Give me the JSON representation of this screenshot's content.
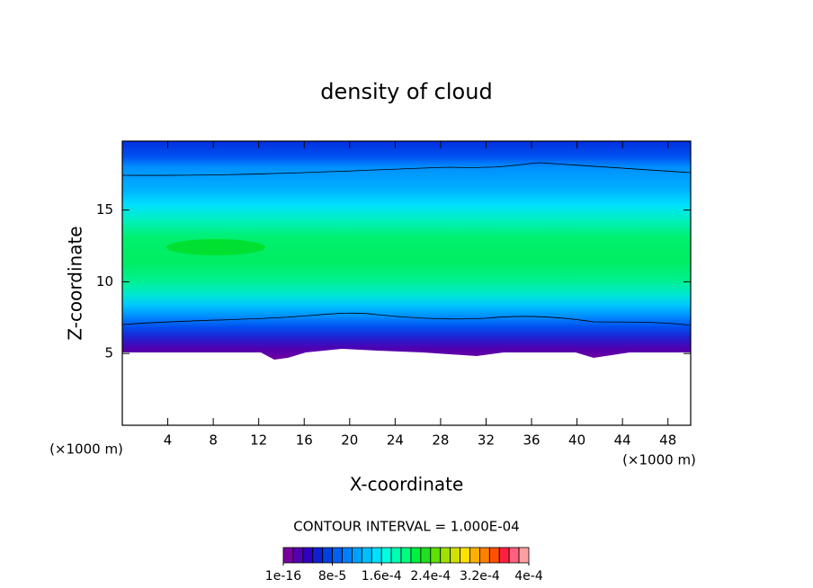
{
  "chart_data": {
    "type": "contour",
    "title": "density of cloud",
    "x_label": "X-coordinate",
    "y_label": "Z-coordinate",
    "axis_unit": "(×1000 m)",
    "xlim": [
      0,
      50
    ],
    "xticks": [
      4,
      8,
      12,
      16,
      20,
      24,
      28,
      32,
      36,
      40,
      44,
      48
    ],
    "ylim": [
      0,
      19.8
    ],
    "yticks": [
      5,
      10,
      15
    ],
    "contour_interval": "CONTOUR INTERVAL = 1.000E-04",
    "colorbar": {
      "lim": [
        0,
        0.0004
      ],
      "colors": [
        "#7a00a0",
        "#5500b0",
        "#3000c0",
        "#1020d0",
        "#0040e0",
        "#0060f0",
        "#0080ff",
        "#00a0ff",
        "#00c0ff",
        "#00e0ff",
        "#00ffe0",
        "#00ffb0",
        "#00ff80",
        "#00f040",
        "#20e020",
        "#60e000",
        "#a0e000",
        "#d0e000",
        "#ffe000",
        "#ffb000",
        "#ff8000",
        "#ff5000",
        "#ff2040",
        "#ff6080",
        "#ffa0a0"
      ],
      "ticks": [
        {
          "value": 1e-16,
          "label": "1e-16"
        },
        {
          "value": 8e-05,
          "label": "8e-5"
        },
        {
          "value": 0.00016,
          "label": "1.6e-4"
        },
        {
          "value": 0.00024,
          "label": "2.4e-4"
        },
        {
          "value": 0.00032,
          "label": "3.2e-4"
        },
        {
          "value": 0.0004,
          "label": "4e-4"
        }
      ]
    }
  }
}
